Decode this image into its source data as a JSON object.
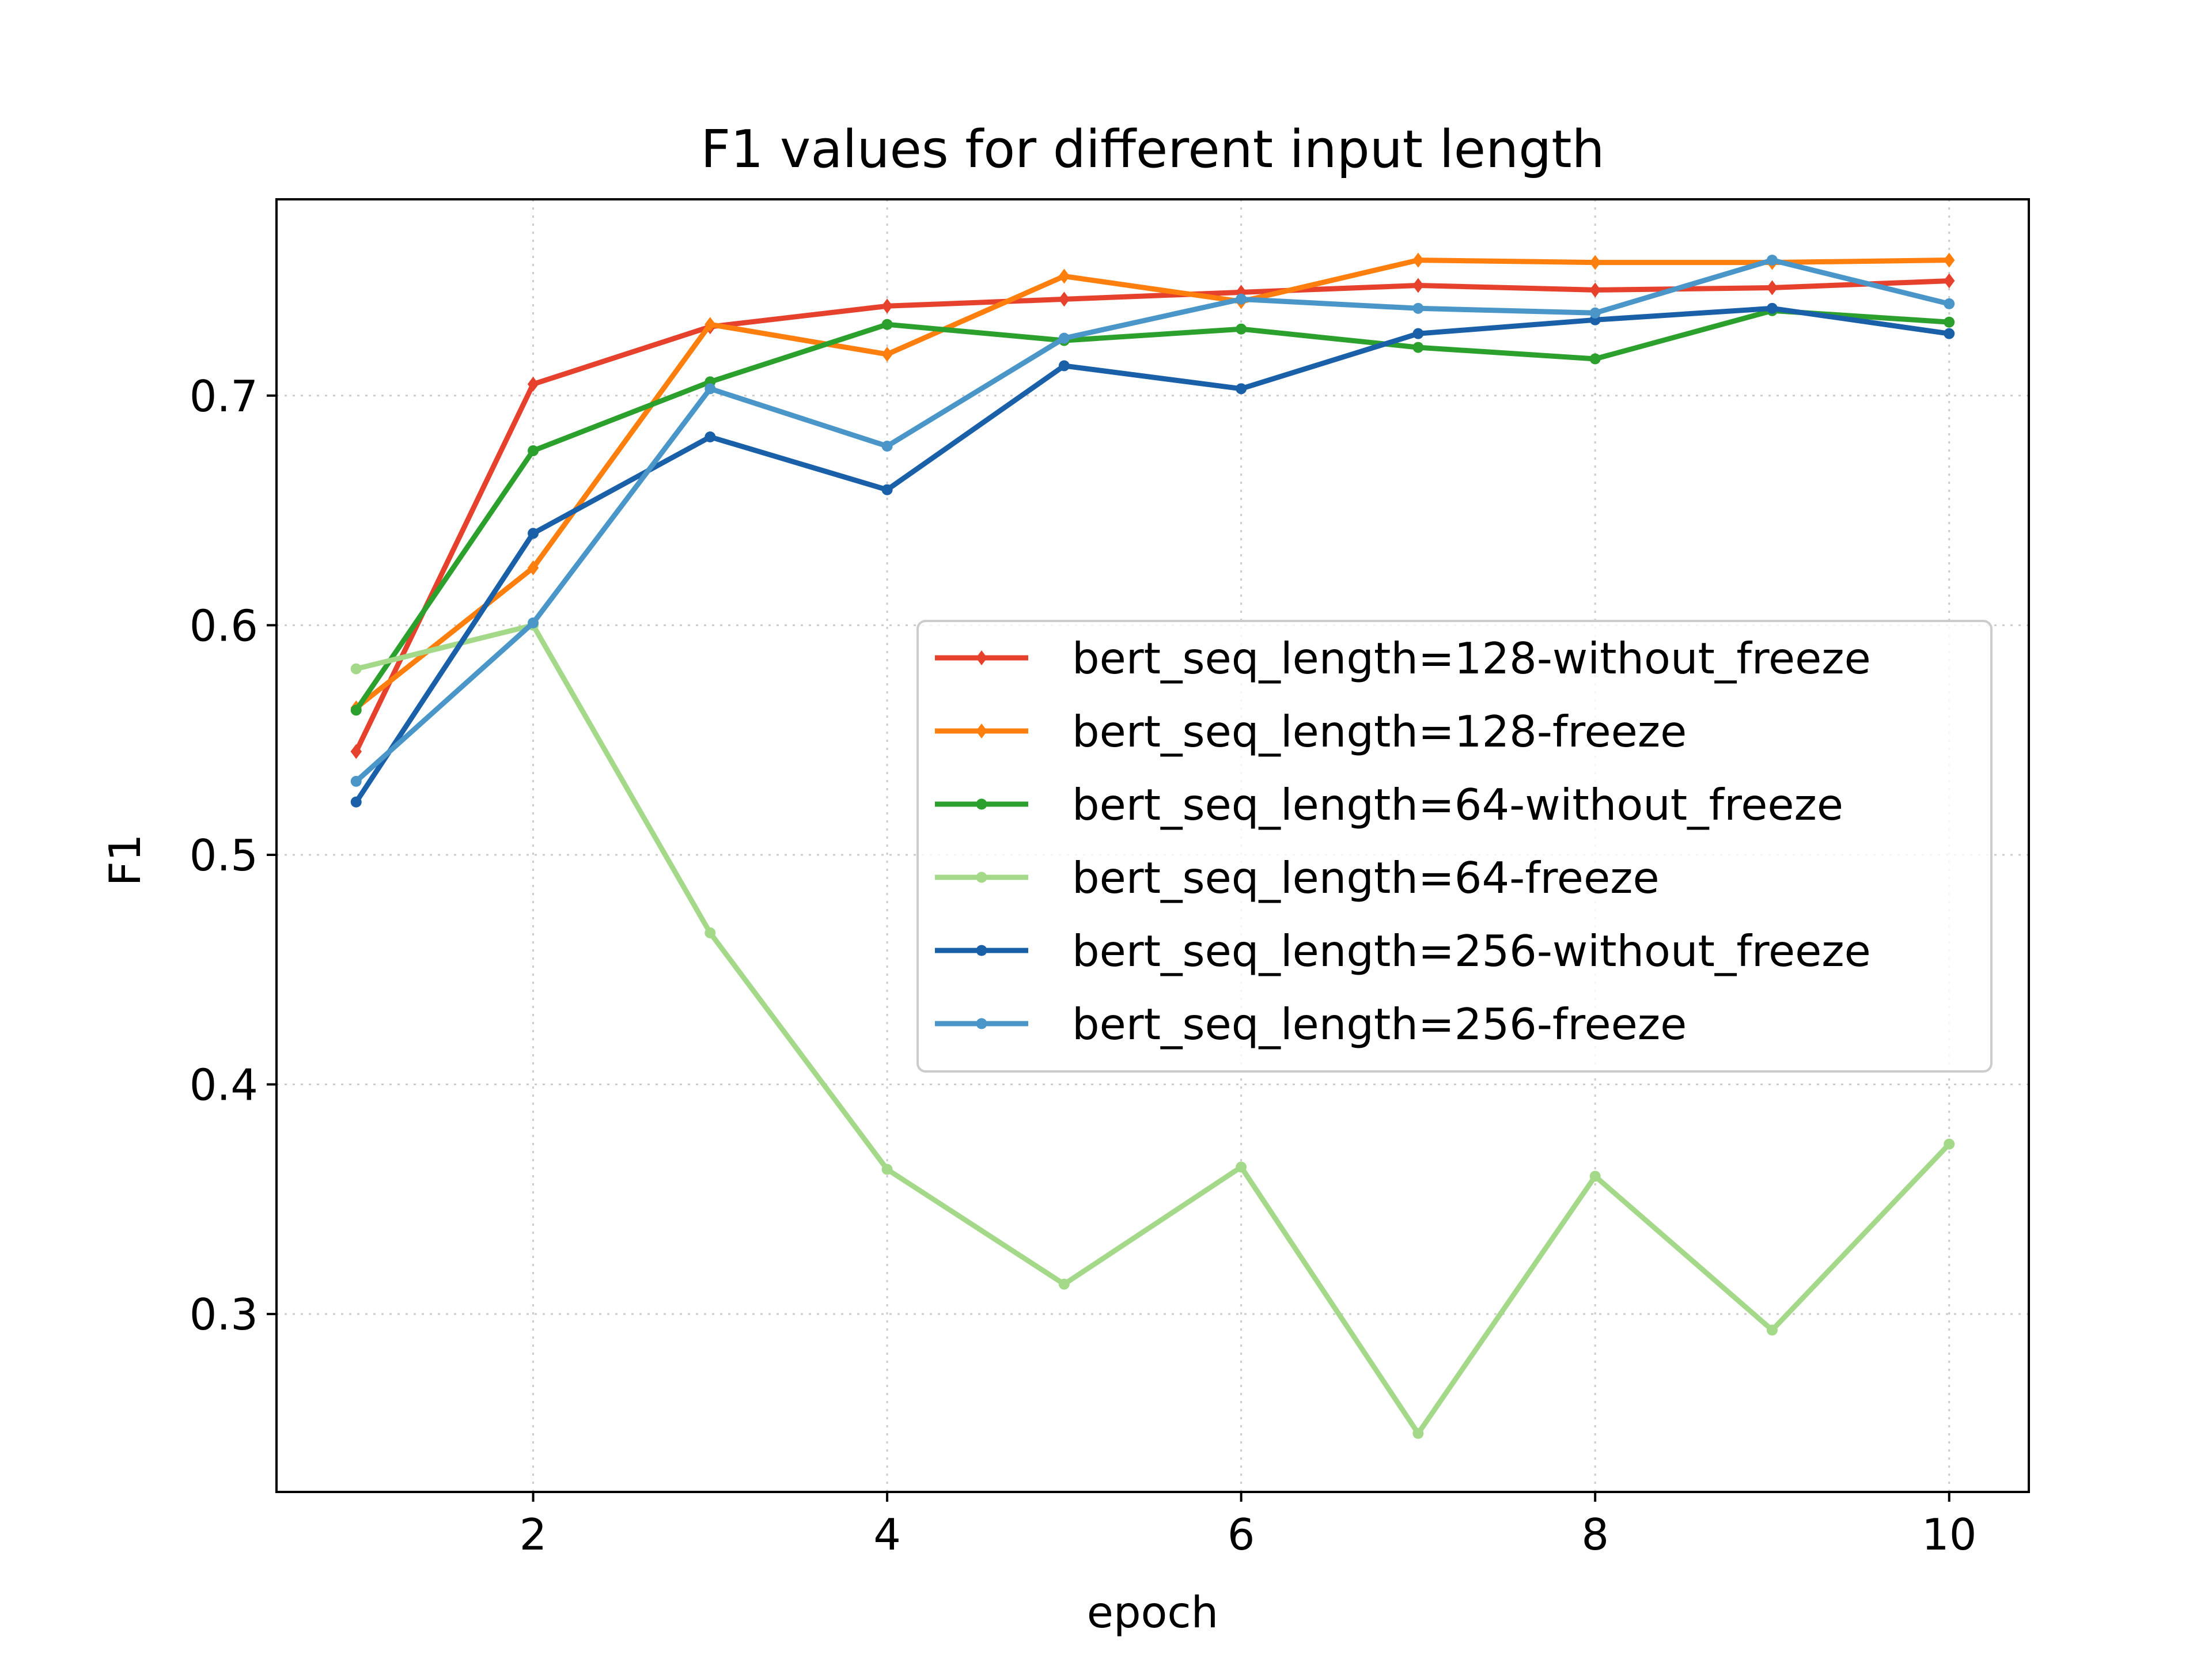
{
  "chart_data": {
    "type": "line",
    "title": "F1 values for different input length",
    "xlabel": "epoch",
    "ylabel": "F1",
    "xlim": [
      0.55,
      10.45
    ],
    "ylim": [
      0.2225,
      0.7855
    ],
    "xticks": [
      2,
      4,
      6,
      8,
      10
    ],
    "xtick_labels": [
      "2",
      "4",
      "6",
      "8",
      "10"
    ],
    "yticks": [
      0.3,
      0.4,
      0.5,
      0.6,
      0.7
    ],
    "ytick_labels": [
      "0.3",
      "0.4",
      "0.5",
      "0.6",
      "0.7"
    ],
    "grid": true,
    "legend_position": "center-right",
    "x": [
      1,
      2,
      3,
      4,
      5,
      6,
      7,
      8,
      9,
      10
    ],
    "series": [
      {
        "name": "bert_seq_length=128-without_freeze",
        "color": "#e6412c",
        "marker": "diamond",
        "values": [
          0.545,
          0.705,
          0.73,
          0.739,
          0.742,
          0.745,
          0.748,
          0.746,
          0.747,
          0.75
        ]
      },
      {
        "name": "bert_seq_length=128-freeze",
        "color": "#ff7f0e",
        "marker": "diamond",
        "values": [
          0.564,
          0.625,
          0.731,
          0.718,
          0.752,
          0.741,
          0.759,
          0.758,
          0.758,
          0.759
        ]
      },
      {
        "name": "bert_seq_length=64-without_freeze",
        "color": "#2ca02c",
        "marker": "dot",
        "values": [
          0.563,
          0.676,
          0.706,
          0.731,
          0.724,
          0.729,
          0.721,
          0.716,
          0.737,
          0.732
        ]
      },
      {
        "name": "bert_seq_length=64-freeze",
        "color": "#a5d98a",
        "marker": "dot",
        "values": [
          0.581,
          0.6,
          0.466,
          0.363,
          0.313,
          0.364,
          0.248,
          0.36,
          0.293,
          0.374
        ]
      },
      {
        "name": "bert_seq_length=256-without_freeze",
        "color": "#1a60a8",
        "marker": "dot",
        "values": [
          0.523,
          0.64,
          0.682,
          0.659,
          0.713,
          0.703,
          0.727,
          0.733,
          0.738,
          0.727
        ]
      },
      {
        "name": "bert_seq_length=256-freeze",
        "color": "#4a96c8",
        "marker": "dot",
        "values": [
          0.532,
          0.601,
          0.703,
          0.678,
          0.725,
          0.742,
          0.738,
          0.736,
          0.759,
          0.74
        ]
      }
    ]
  }
}
